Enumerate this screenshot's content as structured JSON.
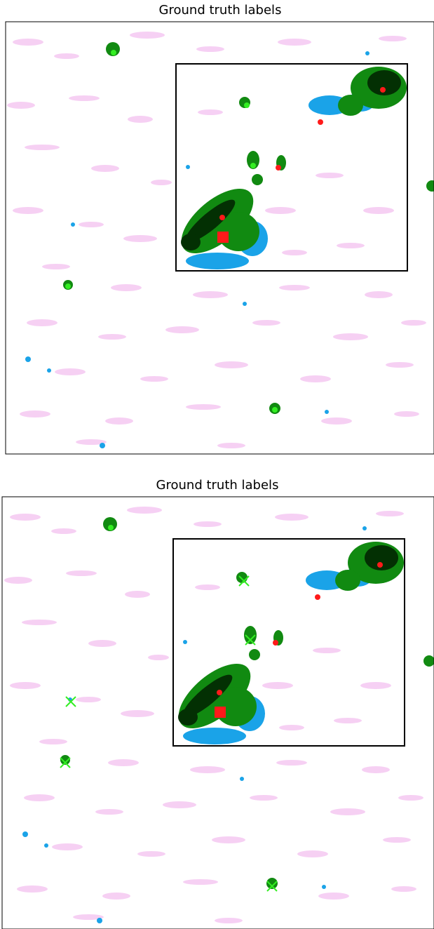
{
  "panels": [
    {
      "title": "Ground truth labels"
    },
    {
      "title": "Ground truth labels"
    }
  ]
}
